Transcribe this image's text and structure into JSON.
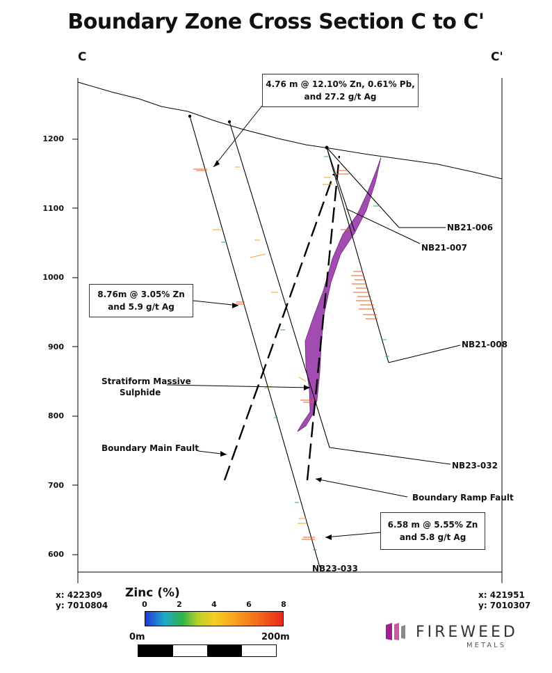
{
  "title": "Boundary Zone Cross Section C to C'",
  "section_start": "C",
  "section_end": "C'",
  "y_axis": {
    "ticks": [
      "1200",
      "1100",
      "1000",
      "900",
      "800",
      "700",
      "600"
    ]
  },
  "callouts": {
    "top": {
      "line1": "4.76 m @ 12.10% Zn, 0.61% Pb,",
      "line2": "and 27.2 g/t Ag"
    },
    "mid": {
      "line1": "8.76m @ 3.05% Zn",
      "line2": "and 5.9 g/t Ag"
    },
    "bottom": {
      "line1": "6.58 m @ 5.55% Zn",
      "line2": "and 5.8 g/t Ag"
    }
  },
  "labels": {
    "massive_sulphide_1": "Stratiform Massive",
    "massive_sulphide_2": "Sulphide",
    "main_fault": "Boundary Main Fault",
    "ramp_fault": "Boundary Ramp Fault"
  },
  "drillholes": [
    "NB21-006",
    "NB21-007",
    "NB21-008",
    "NB23-032",
    "NB23-033"
  ],
  "coords": {
    "left": {
      "x": "x: 422309",
      "y": "y: 7010804"
    },
    "right": {
      "x": "x: 421951",
      "y": "y: 7010307"
    }
  },
  "legend": {
    "title": "Zinc (%)",
    "ticks": [
      "0",
      "2",
      "4",
      "6",
      "8"
    ],
    "colors": [
      "#1f3bd6",
      "#2db34a",
      "#f6cf22",
      "#f7a21e",
      "#e8291a"
    ]
  },
  "scale": {
    "start": "0m",
    "end": "200m"
  },
  "brand": {
    "name": "FIREWEED",
    "sub": "METALS",
    "accent": "#a0208f"
  },
  "colors": {
    "sulphide": "#a24bb0",
    "high_grade": "#f35a1a"
  }
}
